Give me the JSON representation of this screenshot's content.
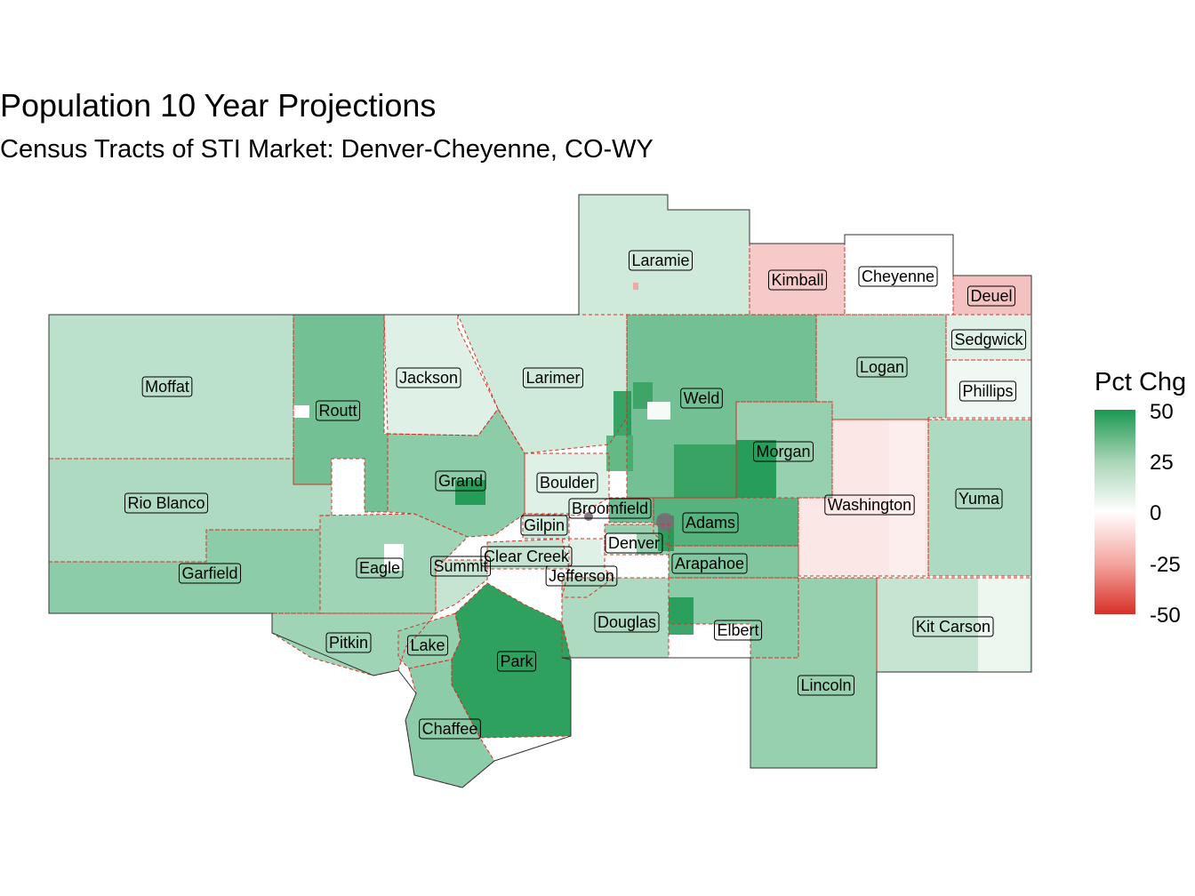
{
  "title": "Population 10 Year Projections",
  "subtitle": "Census Tracts of STI Market: Denver-Cheyenne, CO-WY",
  "legend": {
    "title": "Pct Chg",
    "ticks": [
      "50",
      "25",
      "0",
      "-25",
      "-50"
    ],
    "colors": {
      "high": "#1a9850",
      "mid": "#ffffff",
      "low": "#d73027"
    }
  },
  "counties": [
    {
      "name": "Laramie",
      "pct": 8
    },
    {
      "name": "Kimball",
      "pct": -10
    },
    {
      "name": "Cheyenne",
      "pct": 0
    },
    {
      "name": "Deuel",
      "pct": -12
    },
    {
      "name": "Sedgwick",
      "pct": 5
    },
    {
      "name": "Phillips",
      "pct": 2
    },
    {
      "name": "Logan",
      "pct": 15
    },
    {
      "name": "Moffat",
      "pct": 12
    },
    {
      "name": "Routt",
      "pct": 28
    },
    {
      "name": "Jackson",
      "pct": 5
    },
    {
      "name": "Larimer",
      "pct": 8
    },
    {
      "name": "Weld",
      "pct": 28
    },
    {
      "name": "Morgan",
      "pct": 20
    },
    {
      "name": "Rio Blanco",
      "pct": 15
    },
    {
      "name": "Grand",
      "pct": 22
    },
    {
      "name": "Boulder",
      "pct": 5
    },
    {
      "name": "Broomfield",
      "pct": 30
    },
    {
      "name": "Gilpin",
      "pct": 8
    },
    {
      "name": "Washington",
      "pct": -4
    },
    {
      "name": "Yuma",
      "pct": 15
    },
    {
      "name": "Adams",
      "pct": 35
    },
    {
      "name": "Denver",
      "pct": 20
    },
    {
      "name": "Clear Creek",
      "pct": 10
    },
    {
      "name": "Eagle",
      "pct": 18
    },
    {
      "name": "Summit",
      "pct": 10
    },
    {
      "name": "Garfield",
      "pct": 22
    },
    {
      "name": "Jefferson",
      "pct": 5
    },
    {
      "name": "Arapahoe",
      "pct": 25
    },
    {
      "name": "Douglas",
      "pct": 15
    },
    {
      "name": "Elbert",
      "pct": 22
    },
    {
      "name": "Kit Carson",
      "pct": 10
    },
    {
      "name": "Pitkin",
      "pct": 18
    },
    {
      "name": "Lake",
      "pct": 20
    },
    {
      "name": "Park",
      "pct": 45
    },
    {
      "name": "Lincoln",
      "pct": 20
    },
    {
      "name": "Chaffee",
      "pct": 22
    }
  ]
}
